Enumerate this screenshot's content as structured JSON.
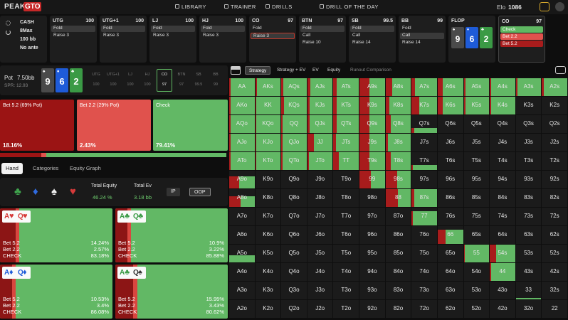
{
  "nav": {
    "logo_main": "PEAK",
    "logo_accent": "GTO",
    "items": [
      "LIBRARY",
      "TRAINER",
      "DRILLS",
      "DRILL OF THE DAY"
    ],
    "elo_label": "Elo",
    "elo": 1086
  },
  "game": {
    "type": "CASH",
    "players": "8Max",
    "stack": "100 bb",
    "ante": "No ante"
  },
  "positions": [
    {
      "name": "UTG",
      "stack": 100,
      "actions": [
        "Fold",
        "Raise 3"
      ],
      "selected": 0
    },
    {
      "name": "UTG+1",
      "stack": 100,
      "actions": [
        "Fold",
        "Raise 3"
      ],
      "selected": 0
    },
    {
      "name": "LJ",
      "stack": 100,
      "actions": [
        "Fold",
        "Raise 3"
      ],
      "selected": 0
    },
    {
      "name": "HJ",
      "stack": 100,
      "actions": [
        "Fold",
        "Raise 3"
      ],
      "selected": 0
    },
    {
      "name": "CO",
      "stack": 97,
      "actions": [
        "Fold",
        "Raise 3"
      ],
      "selected": 1,
      "selected_border": "#c0392b"
    },
    {
      "name": "BTN",
      "stack": 97,
      "actions": [
        "Fold",
        "Call",
        "Raise 10"
      ],
      "selected": 0
    },
    {
      "name": "SB",
      "stack": 99.5,
      "actions": [
        "Fold",
        "Call",
        "Raise 14"
      ],
      "selected": 0
    },
    {
      "name": "BB",
      "stack": 99,
      "actions": [
        "Fold",
        "Call",
        "Raise 14"
      ],
      "selected": 1
    }
  ],
  "flop": {
    "label": "FLOP",
    "cards": [
      {
        "rank": "9",
        "suit": "♠",
        "color": "#4a4a4a"
      },
      {
        "rank": "6",
        "suit": "♦",
        "color": "#1e5bd8"
      },
      {
        "rank": "2",
        "suit": "♣",
        "color": "#3a9a45"
      }
    ]
  },
  "current": {
    "name": "CO",
    "stack": 97,
    "actions": [
      {
        "label": "Check",
        "color": "#5fb862"
      },
      {
        "label": "Bet 2.2",
        "color": "#e0524d"
      },
      {
        "label": "Bet 5.2",
        "color": "#a81c1c"
      }
    ]
  },
  "pot_panel": {
    "pot_label": "Pot",
    "pot": "7.50bb",
    "spr": "SPR: 12.93",
    "highlight_position": 4
  },
  "strategy": {
    "actions": [
      {
        "label": "Bet 5.2 (69% Pot)",
        "value": 18.16,
        "value_label": "18.16%",
        "color": "#9b1414"
      },
      {
        "label": "Bet 2.2 (29% Pot)",
        "value": 2.43,
        "value_label": "2.43%",
        "color": "#e0524d"
      },
      {
        "label": "Check",
        "value": 79.41,
        "value_label": "79.41%",
        "color": "#62b865"
      }
    ]
  },
  "left_tabs": {
    "items": [
      "Hand",
      "Categories",
      "Equity Graph"
    ],
    "active": 0
  },
  "equity_panel": {
    "suits": [
      {
        "symbol": "♣",
        "color": "#3fa34d"
      },
      {
        "symbol": "♦",
        "color": "#2f6be0"
      },
      {
        "symbol": "♠",
        "color": "#f0f0f0"
      },
      {
        "symbol": "♥",
        "color": "#d63a3a"
      }
    ],
    "equity_label": "Total Equity",
    "equity": "46.24 %",
    "ev_label": "Total Ev",
    "ev": "3.18 bb",
    "buttons": [
      "IP",
      "OOP"
    ]
  },
  "hands": [
    {
      "cards": [
        {
          "rank": "A",
          "suit": "♥",
          "color": "#d63a3a"
        },
        {
          "rank": "Q",
          "suit": "♥",
          "color": "#d63a3a"
        }
      ],
      "lines": [
        {
          "label": "Bet 5.2",
          "value": 14.24,
          "value_label": "14.24%"
        },
        {
          "label": "Bet 2.2",
          "value": 2.57,
          "value_label": "2.57%"
        },
        {
          "label": "CHECK",
          "value": 83.18,
          "value_label": "83.18%"
        }
      ]
    },
    {
      "cards": [
        {
          "rank": "A",
          "suit": "♣",
          "color": "#3a9a45"
        },
        {
          "rank": "Q",
          "suit": "♣",
          "color": "#3a9a45"
        }
      ],
      "lines": [
        {
          "label": "Bet 5.2",
          "value": 10.9,
          "value_label": "10.9%"
        },
        {
          "label": "Bet 2.2",
          "value": 3.22,
          "value_label": "3.22%"
        },
        {
          "label": "CHECK",
          "value": 85.88,
          "value_label": "85.88%"
        }
      ]
    },
    {
      "cards": [
        {
          "rank": "A",
          "suit": "♦",
          "color": "#1e5bd8"
        },
        {
          "rank": "Q",
          "suit": "♦",
          "color": "#1e5bd8"
        }
      ],
      "lines": [
        {
          "label": "Bet 5.2",
          "value": 10.53,
          "value_label": "10.53%"
        },
        {
          "label": "Bet 2.2",
          "value": 3.4,
          "value_label": "3.4%"
        },
        {
          "label": "CHECK",
          "value": 86.08,
          "value_label": "86.08%"
        }
      ]
    },
    {
      "cards": [
        {
          "rank": "A",
          "suit": "♣",
          "color": "#3a9a45"
        },
        {
          "rank": "Q",
          "suit": "♠",
          "color": "#333333"
        }
      ],
      "lines": [
        {
          "label": "Bet 5.2",
          "value": 15.95,
          "value_label": "15.95%"
        },
        {
          "label": "Bet 2.2",
          "value": 3.43,
          "value_label": "3.43%"
        },
        {
          "label": "CHECK",
          "value": 80.62,
          "value_label": "80.62%"
        }
      ]
    }
  ],
  "right_tabs": {
    "items": [
      "Strategy",
      "Strategy + EV",
      "EV",
      "Equity",
      "Runout Comparison"
    ],
    "active": 0
  },
  "grid": {
    "hands": [
      [
        "AA",
        "AKs",
        "AQs",
        "AJs",
        "ATs",
        "A9s",
        "A8s",
        "A7s",
        "A6s",
        "A5s",
        "A4s",
        "A3s",
        "A2s"
      ],
      [
        "AKo",
        "KK",
        "KQs",
        "KJs",
        "KTs",
        "K9s",
        "K8s",
        "K7s",
        "K6s",
        "K5s",
        "K4s",
        "K3s",
        "K2s"
      ],
      [
        "AQo",
        "KQo",
        "QQ",
        "QJs",
        "QTs",
        "Q9s",
        "Q8s",
        "Q7s",
        "Q6s",
        "Q5s",
        "Q4s",
        "Q3s",
        "Q2s"
      ],
      [
        "AJo",
        "KJo",
        "QJo",
        "JJ",
        "JTs",
        "J9s",
        "J8s",
        "J7s",
        "J6s",
        "J5s",
        "J4s",
        "J3s",
        "J2s"
      ],
      [
        "ATo",
        "KTo",
        "QTo",
        "JTo",
        "TT",
        "T9s",
        "T8s",
        "T7s",
        "T6s",
        "T5s",
        "T4s",
        "T3s",
        "T2s"
      ],
      [
        "A9o",
        "K9o",
        "Q9o",
        "J9o",
        "T9o",
        "99",
        "98s",
        "97s",
        "96s",
        "95s",
        "94s",
        "93s",
        "92s"
      ],
      [
        "A8o",
        "K8o",
        "Q8o",
        "J8o",
        "T8o",
        "98o",
        "88",
        "87s",
        "86s",
        "85s",
        "84s",
        "83s",
        "82s"
      ],
      [
        "A7o",
        "K7o",
        "Q7o",
        "J7o",
        "T7o",
        "97o",
        "87o",
        "77",
        "76s",
        "75s",
        "74s",
        "73s",
        "72s"
      ],
      [
        "A6o",
        "K6o",
        "Q6o",
        "J6o",
        "T6o",
        "96o",
        "86o",
        "76o",
        "66",
        "65s",
        "64s",
        "63s",
        "62s"
      ],
      [
        "A5o",
        "K5o",
        "Q5o",
        "J5o",
        "T5o",
        "95o",
        "85o",
        "75o",
        "65o",
        "55",
        "54s",
        "53s",
        "52s"
      ],
      [
        "A4o",
        "K4o",
        "Q4o",
        "J4o",
        "T4o",
        "94o",
        "84o",
        "74o",
        "64o",
        "54o",
        "44",
        "43s",
        "42s"
      ],
      [
        "A3o",
        "K3o",
        "Q3o",
        "J3o",
        "T3o",
        "93o",
        "83o",
        "73o",
        "63o",
        "53o",
        "43o",
        "33",
        "32s"
      ],
      [
        "A2o",
        "K2o",
        "Q2o",
        "J2o",
        "T2o",
        "92o",
        "82o",
        "72o",
        "62o",
        "52o",
        "42o",
        "32o",
        "22"
      ]
    ],
    "range": [
      [
        100,
        100,
        100,
        100,
        100,
        100,
        100,
        100,
        100,
        100,
        100,
        100,
        100
      ],
      [
        100,
        100,
        100,
        100,
        100,
        100,
        100,
        100,
        100,
        100,
        100,
        0,
        0
      ],
      [
        100,
        100,
        100,
        100,
        100,
        100,
        100,
        30,
        0,
        0,
        0,
        0,
        0
      ],
      [
        100,
        100,
        100,
        100,
        100,
        100,
        100,
        0,
        0,
        0,
        0,
        0,
        0
      ],
      [
        100,
        100,
        100,
        100,
        100,
        100,
        100,
        30,
        0,
        0,
        0,
        0,
        0
      ],
      [
        70,
        0,
        0,
        0,
        0,
        100,
        100,
        0,
        0,
        0,
        0,
        0,
        0
      ],
      [
        60,
        0,
        0,
        0,
        0,
        0,
        100,
        100,
        0,
        0,
        0,
        0,
        0
      ],
      [
        0,
        0,
        0,
        0,
        0,
        0,
        0,
        80,
        0,
        0,
        0,
        0,
        0
      ],
      [
        0,
        0,
        0,
        0,
        0,
        0,
        0,
        0,
        80,
        0,
        0,
        0,
        0
      ],
      [
        40,
        0,
        0,
        0,
        0,
        0,
        0,
        0,
        0,
        100,
        100,
        0,
        0
      ],
      [
        0,
        0,
        0,
        0,
        0,
        0,
        0,
        0,
        0,
        0,
        100,
        0,
        0
      ],
      [
        0,
        0,
        0,
        0,
        0,
        0,
        0,
        0,
        0,
        0,
        0,
        10,
        0
      ],
      [
        0,
        0,
        0,
        0,
        0,
        0,
        0,
        0,
        0,
        0,
        0,
        0,
        0
      ]
    ],
    "bet": [
      [
        5,
        8,
        8,
        12,
        12,
        40,
        25,
        12,
        20,
        6,
        6,
        6,
        6
      ],
      [
        5,
        5,
        10,
        10,
        12,
        40,
        15,
        30,
        20,
        6,
        6,
        0,
        0
      ],
      [
        5,
        5,
        5,
        10,
        12,
        40,
        20,
        10,
        0,
        0,
        0,
        0,
        0
      ],
      [
        5,
        5,
        5,
        25,
        10,
        40,
        10,
        0,
        0,
        0,
        0,
        0,
        0
      ],
      [
        5,
        5,
        5,
        5,
        20,
        40,
        20,
        5,
        0,
        0,
        0,
        0,
        0
      ],
      [
        40,
        0,
        0,
        0,
        0,
        45,
        45,
        0,
        0,
        0,
        0,
        0,
        0
      ],
      [
        45,
        0,
        0,
        0,
        0,
        0,
        50,
        10,
        0,
        0,
        0,
        0,
        0
      ],
      [
        0,
        0,
        0,
        0,
        0,
        0,
        0,
        5,
        0,
        0,
        0,
        0,
        0
      ],
      [
        0,
        0,
        0,
        0,
        0,
        0,
        0,
        0,
        30,
        0,
        0,
        0,
        0
      ],
      [
        0,
        0,
        0,
        0,
        0,
        0,
        0,
        0,
        0,
        5,
        25,
        0,
        0
      ],
      [
        0,
        0,
        0,
        0,
        0,
        0,
        0,
        0,
        0,
        0,
        5,
        0,
        0
      ],
      [
        0,
        0,
        0,
        0,
        0,
        0,
        0,
        0,
        0,
        0,
        0,
        0,
        0
      ],
      [
        0,
        0,
        0,
        0,
        0,
        0,
        0,
        0,
        0,
        0,
        0,
        0,
        0
      ]
    ],
    "bet_color": "#a81c1c",
    "check_color": "#62b865"
  }
}
